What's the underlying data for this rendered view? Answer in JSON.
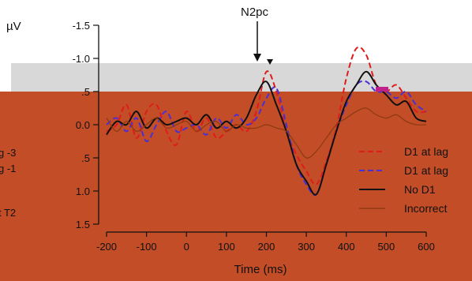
{
  "chart_data": {
    "type": "line",
    "title": "",
    "annotation": "N2pc",
    "ylabel_unit": "µV",
    "xlabel": "Time (ms)",
    "xlim": [
      -200,
      600
    ],
    "ylim": [
      1.5,
      -1.5
    ],
    "x_ticks": [
      "-200",
      "-100",
      "0",
      "100",
      "200",
      "300",
      "400",
      "500",
      "600"
    ],
    "y_ticks": [
      "-1.5",
      "-1.0",
      ".5",
      "0.0",
      ".5",
      "1.0",
      "1.5"
    ],
    "y_tick_values": [
      -1.5,
      -1.0,
      -0.5,
      0.0,
      0.5,
      1.0,
      1.5
    ],
    "side_labels": [
      "g -3",
      "g -1",
      "t T2"
    ],
    "legend": [
      {
        "label": "D1 at lag",
        "color": "#e01b1b",
        "dash": "dashed"
      },
      {
        "label": "D1 at lag",
        "color": "#4a2fd6",
        "dash": "dashed"
      },
      {
        "label": "No D1",
        "color": "#111111",
        "dash": "solid"
      },
      {
        "label": "Incorrect",
        "color": "#8b3a12",
        "dash": "solid"
      }
    ],
    "colors": {
      "background": "#c24d26",
      "overlay_band": "#d8d8d8",
      "magenta_marker": "#c0208a"
    },
    "series": [
      {
        "color": "#e01b1b",
        "dash": "dashed",
        "x": [
          -200,
          -175,
          -150,
          -125,
          -100,
          -75,
          -50,
          -25,
          0,
          25,
          50,
          75,
          100,
          125,
          150,
          175,
          200,
          225,
          250,
          275,
          300,
          325,
          350,
          375,
          400,
          425,
          450,
          475,
          500,
          525,
          550,
          575,
          600
        ],
        "y": [
          0.1,
          0.0,
          -0.3,
          0.2,
          -0.2,
          -0.3,
          0.1,
          0.3,
          -0.2,
          0.1,
          -0.1,
          0.2,
          0.1,
          0.0,
          0.1,
          -0.2,
          -0.8,
          -0.5,
          0.1,
          0.45,
          0.7,
          0.9,
          0.55,
          0.05,
          -0.7,
          -1.15,
          -1.05,
          -0.6,
          -0.5,
          -0.6,
          -0.4,
          -0.2,
          -0.2
        ]
      },
      {
        "color": "#4a2fd6",
        "dash": "dashed",
        "x": [
          -200,
          -175,
          -150,
          -125,
          -100,
          -75,
          -50,
          -25,
          0,
          25,
          50,
          75,
          100,
          125,
          150,
          175,
          200,
          225,
          250,
          275,
          300,
          325,
          350,
          375,
          400,
          425,
          450,
          475,
          500,
          525,
          550,
          575,
          600
        ],
        "y": [
          0.0,
          -0.1,
          0.1,
          -0.1,
          0.25,
          0.0,
          -0.2,
          0.1,
          0.05,
          0.0,
          0.15,
          -0.1,
          0.05,
          -0.15,
          0.0,
          -0.1,
          -0.4,
          -0.55,
          0.0,
          0.6,
          0.9,
          1.05,
          0.6,
          0.1,
          -0.3,
          -0.6,
          -0.65,
          -0.5,
          -0.5,
          -0.4,
          -0.5,
          -0.3,
          -0.2
        ]
      },
      {
        "color": "#111111",
        "dash": "solid",
        "x": [
          -200,
          -175,
          -150,
          -125,
          -100,
          -75,
          -50,
          -25,
          0,
          25,
          50,
          75,
          100,
          125,
          150,
          175,
          200,
          225,
          250,
          275,
          300,
          325,
          350,
          375,
          400,
          425,
          450,
          475,
          500,
          525,
          550,
          575,
          600
        ],
        "y": [
          0.15,
          -0.05,
          0.0,
          -0.2,
          0.05,
          -0.1,
          0.0,
          -0.05,
          -0.1,
          0.0,
          -0.15,
          0.05,
          -0.05,
          0.05,
          -0.1,
          -0.45,
          -0.65,
          -0.3,
          0.1,
          0.6,
          0.85,
          1.05,
          0.6,
          0.1,
          -0.35,
          -0.6,
          -0.8,
          -0.6,
          -0.45,
          -0.3,
          -0.35,
          -0.1,
          -0.05
        ]
      },
      {
        "color": "#8b3a12",
        "dash": "solid",
        "x": [
          -200,
          -175,
          -150,
          -125,
          -100,
          -75,
          -50,
          -25,
          0,
          25,
          50,
          75,
          100,
          125,
          150,
          175,
          200,
          225,
          250,
          275,
          300,
          325,
          350,
          375,
          400,
          425,
          450,
          475,
          500,
          525,
          550,
          575,
          600
        ],
        "y": [
          -0.1,
          0.1,
          -0.05,
          0.1,
          0.0,
          -0.1,
          0.05,
          0.0,
          -0.05,
          0.1,
          0.0,
          -0.05,
          0.1,
          0.0,
          0.05,
          0.05,
          0.0,
          0.05,
          0.1,
          0.3,
          0.5,
          0.4,
          0.2,
          0.0,
          -0.1,
          -0.2,
          -0.25,
          -0.15,
          -0.1,
          -0.15,
          -0.05,
          0.0,
          0.0
        ]
      }
    ]
  }
}
